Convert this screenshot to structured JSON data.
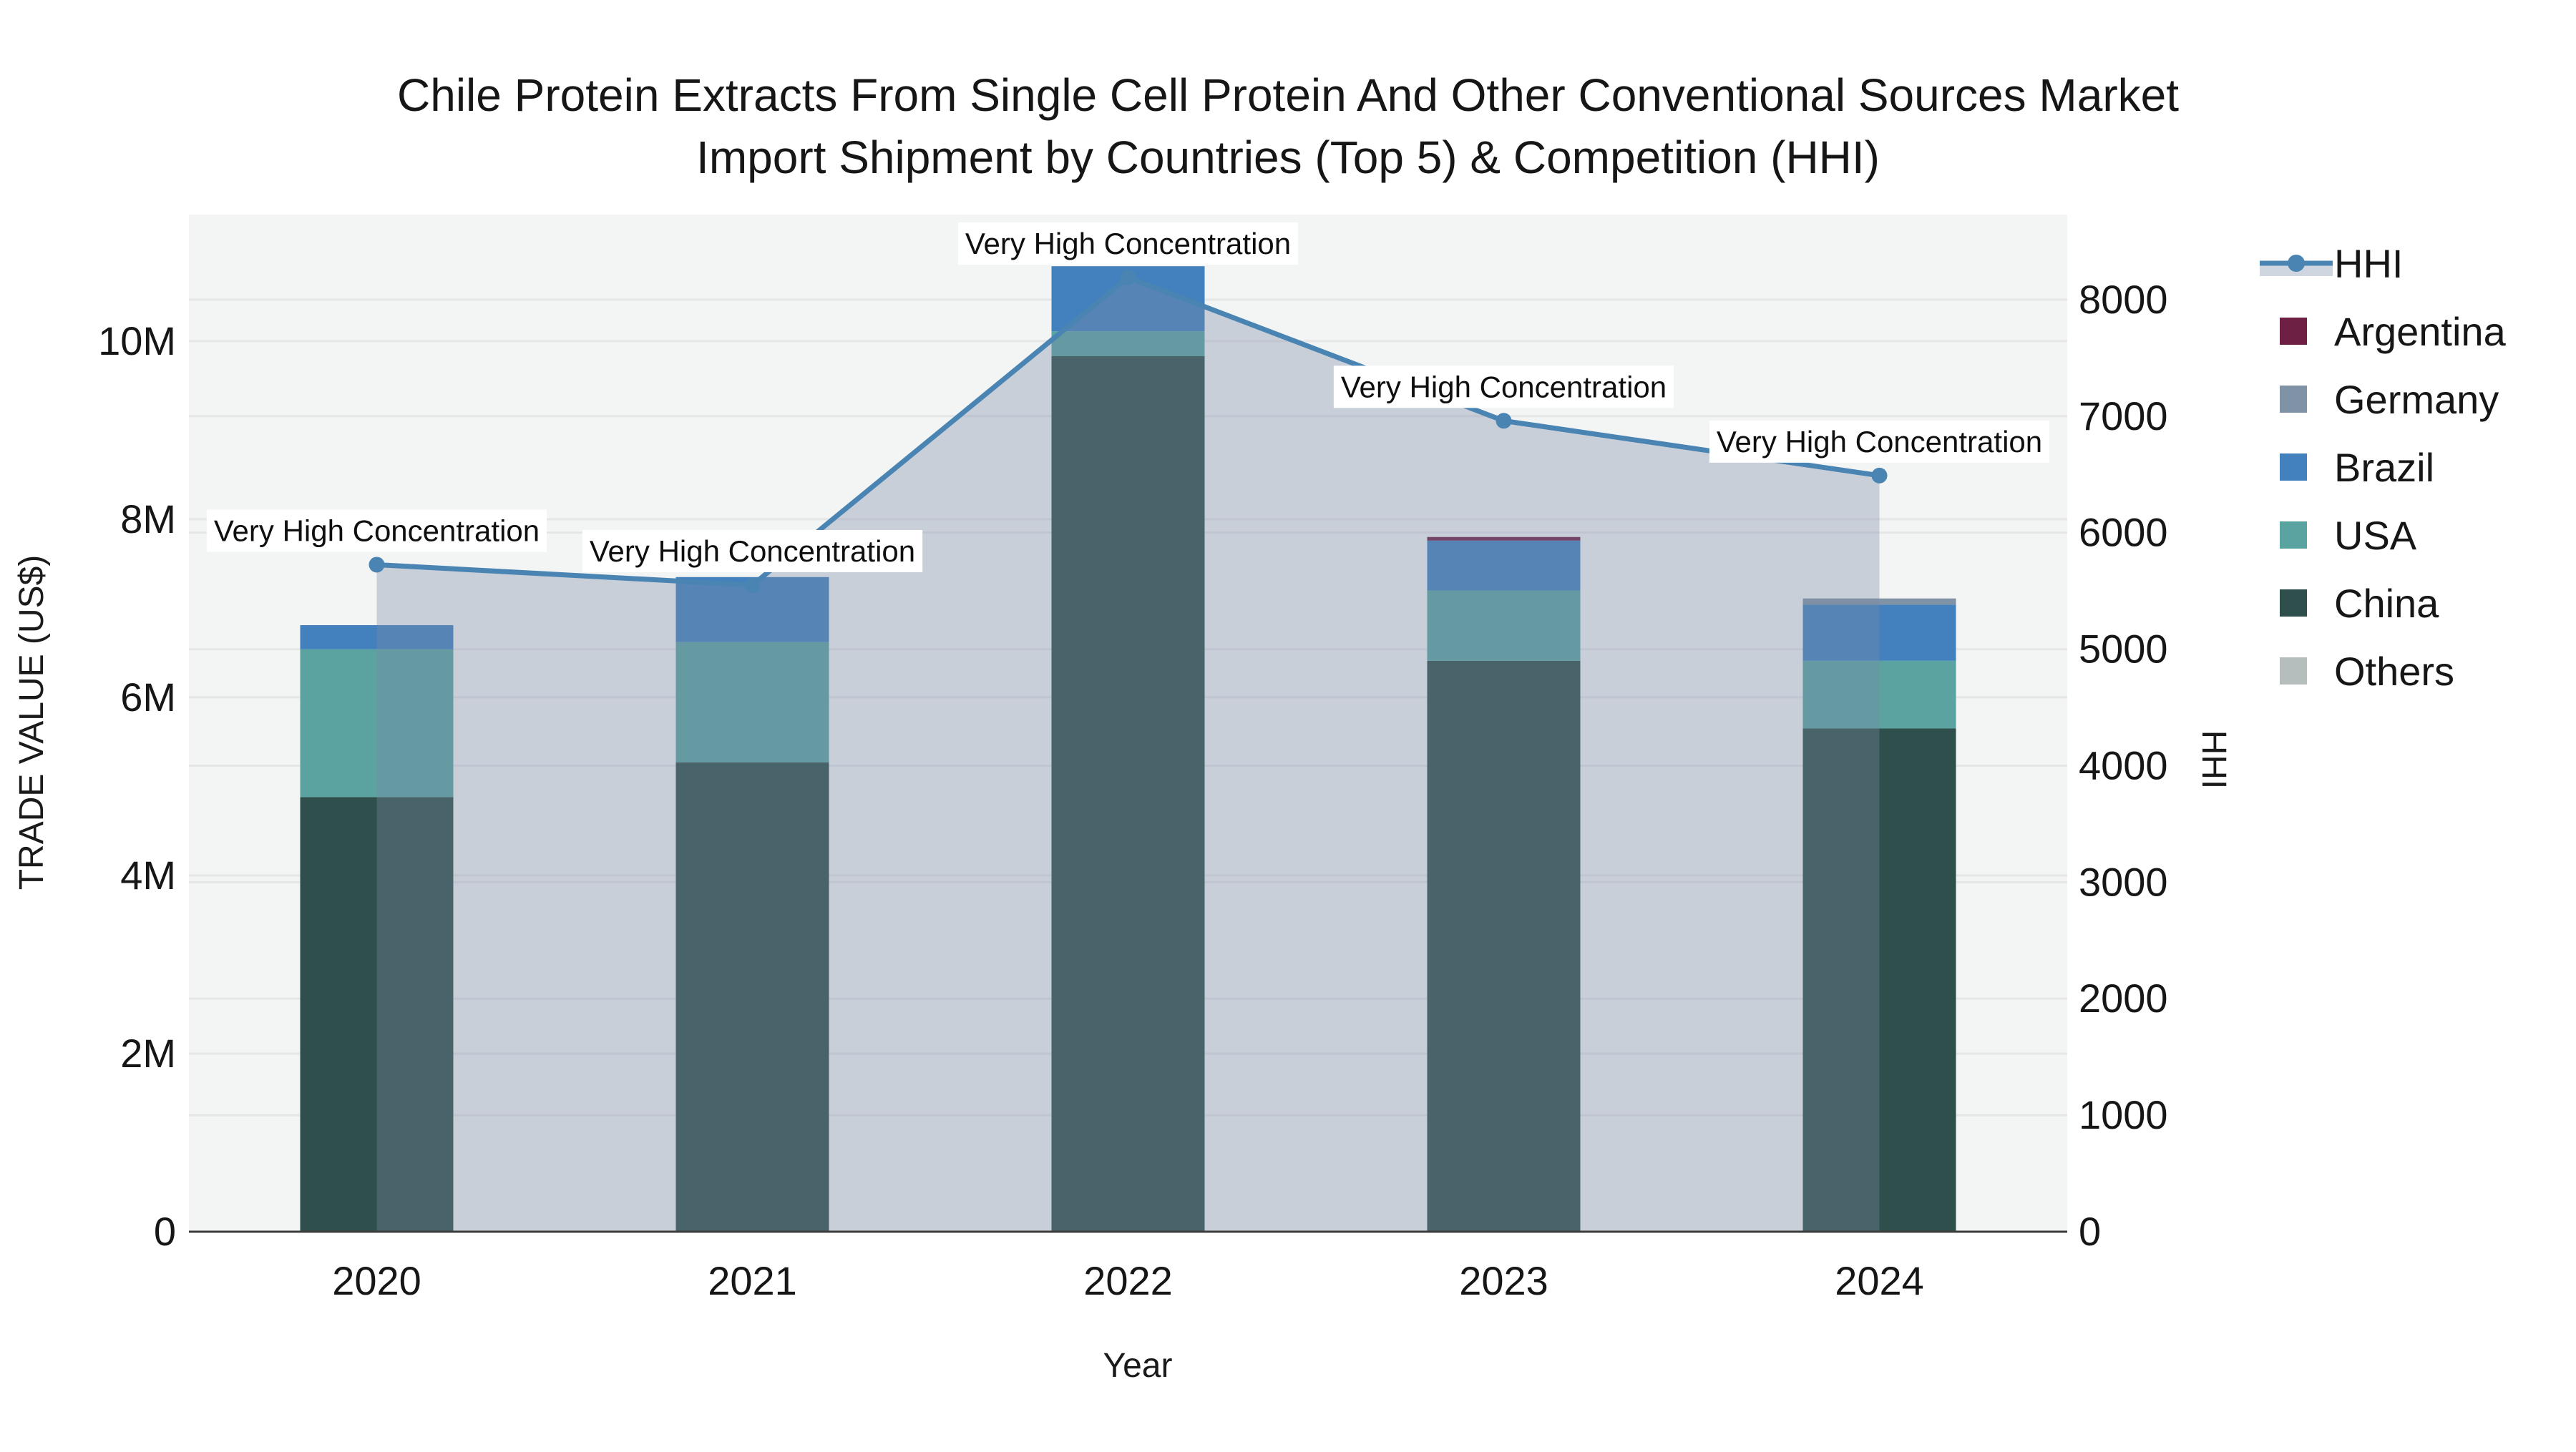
{
  "title": {
    "line1": "Chile Protein Extracts From Single Cell Protein And Other Conventional Sources Market",
    "line2": "Import Shipment by Countries (Top 5) & Competition (HHI)"
  },
  "axes": {
    "left": {
      "title": "TRADE VALUE (US$)",
      "ticks": [
        {
          "label": "0",
          "value": 0
        },
        {
          "label": "2M",
          "value": 2000000
        },
        {
          "label": "4M",
          "value": 4000000
        },
        {
          "label": "6M",
          "value": 6000000
        },
        {
          "label": "8M",
          "value": 8000000
        },
        {
          "label": "10M",
          "value": 10000000
        }
      ]
    },
    "right": {
      "title": "HHI",
      "ticks": [
        {
          "label": "0",
          "value": 0
        },
        {
          "label": "1000",
          "value": 1000
        },
        {
          "label": "2000",
          "value": 2000
        },
        {
          "label": "3000",
          "value": 3000
        },
        {
          "label": "4000",
          "value": 4000
        },
        {
          "label": "5000",
          "value": 5000
        },
        {
          "label": "6000",
          "value": 6000
        },
        {
          "label": "7000",
          "value": 7000
        },
        {
          "label": "8000",
          "value": 8000
        }
      ]
    },
    "x": {
      "title": "Year"
    }
  },
  "legend": {
    "items": [
      {
        "label": "HHI",
        "type": "line",
        "color": "#4a84b2",
        "band_color": "#cfd6df"
      },
      {
        "label": "Argentina",
        "type": "swatch",
        "color": "#6e1f44"
      },
      {
        "label": "Germany",
        "type": "swatch",
        "color": "#8093a6"
      },
      {
        "label": "Brazil",
        "type": "swatch",
        "color": "#4281bd"
      },
      {
        "label": "USA",
        "type": "swatch",
        "color": "#5aa3a0"
      },
      {
        "label": "China",
        "type": "swatch",
        "color": "#2e4f4b"
      },
      {
        "label": "Others",
        "type": "swatch",
        "color": "#b6bdbd"
      }
    ]
  },
  "chart_data": {
    "type": "combo: stacked-bar (left axis) + line-area (right axis)",
    "title": "Chile Protein Extracts From Single Cell Protein And Other Conventional Sources Market Import Shipment by Countries (Top 5) & Competition (HHI)",
    "xlabel": "Year",
    "ylabel_left": "TRADE VALUE (US$)",
    "ylabel_right": "HHI",
    "categories": [
      2020,
      2021,
      2022,
      2023,
      2024
    ],
    "bar_stack_bottom_to_top": [
      "China",
      "USA",
      "Brazil",
      "Germany",
      "Argentina",
      "Others"
    ],
    "series": [
      {
        "name": "China",
        "color": "#2e4f4b",
        "values_usd": [
          4880000,
          5270000,
          9830000,
          6410000,
          5650000
        ]
      },
      {
        "name": "USA",
        "color": "#5aa3a0",
        "values_usd": [
          1660000,
          1350000,
          280000,
          790000,
          760000
        ]
      },
      {
        "name": "Brazil",
        "color": "#4281bd",
        "values_usd": [
          270000,
          730000,
          730000,
          560000,
          630000
        ]
      },
      {
        "name": "Germany",
        "color": "#8093a6",
        "values_usd": [
          0,
          0,
          0,
          0,
          70000
        ]
      },
      {
        "name": "Argentina",
        "color": "#6e1f44",
        "values_usd": [
          0,
          0,
          0,
          40000,
          0
        ]
      },
      {
        "name": "Others",
        "color": "#b6bdbd",
        "values_usd": [
          0,
          0,
          0,
          0,
          0
        ]
      }
    ],
    "bar_totals_usd": [
      6810000,
      7350000,
      10840000,
      7800000,
      7110000
    ],
    "hhi": {
      "name": "HHI",
      "line_color": "#4a84b2",
      "area_fill": "rgba(123,138,167,0.35)",
      "values": [
        5725,
        5550,
        8190,
        6960,
        6490
      ]
    },
    "annotations": [
      "Very High Concentration",
      "Very High Concentration",
      "Very High Concentration",
      "Very High Concentration",
      "Very High Concentration"
    ],
    "ylim_left_usd": [
      0,
      11420000
    ],
    "ylim_right": [
      0,
      8730
    ],
    "grid": true,
    "legend_position": "right",
    "plot_bg": "#f3f4f4",
    "grid_color": "#e5e6e8",
    "zero_line_color": "#3c3c3c"
  }
}
